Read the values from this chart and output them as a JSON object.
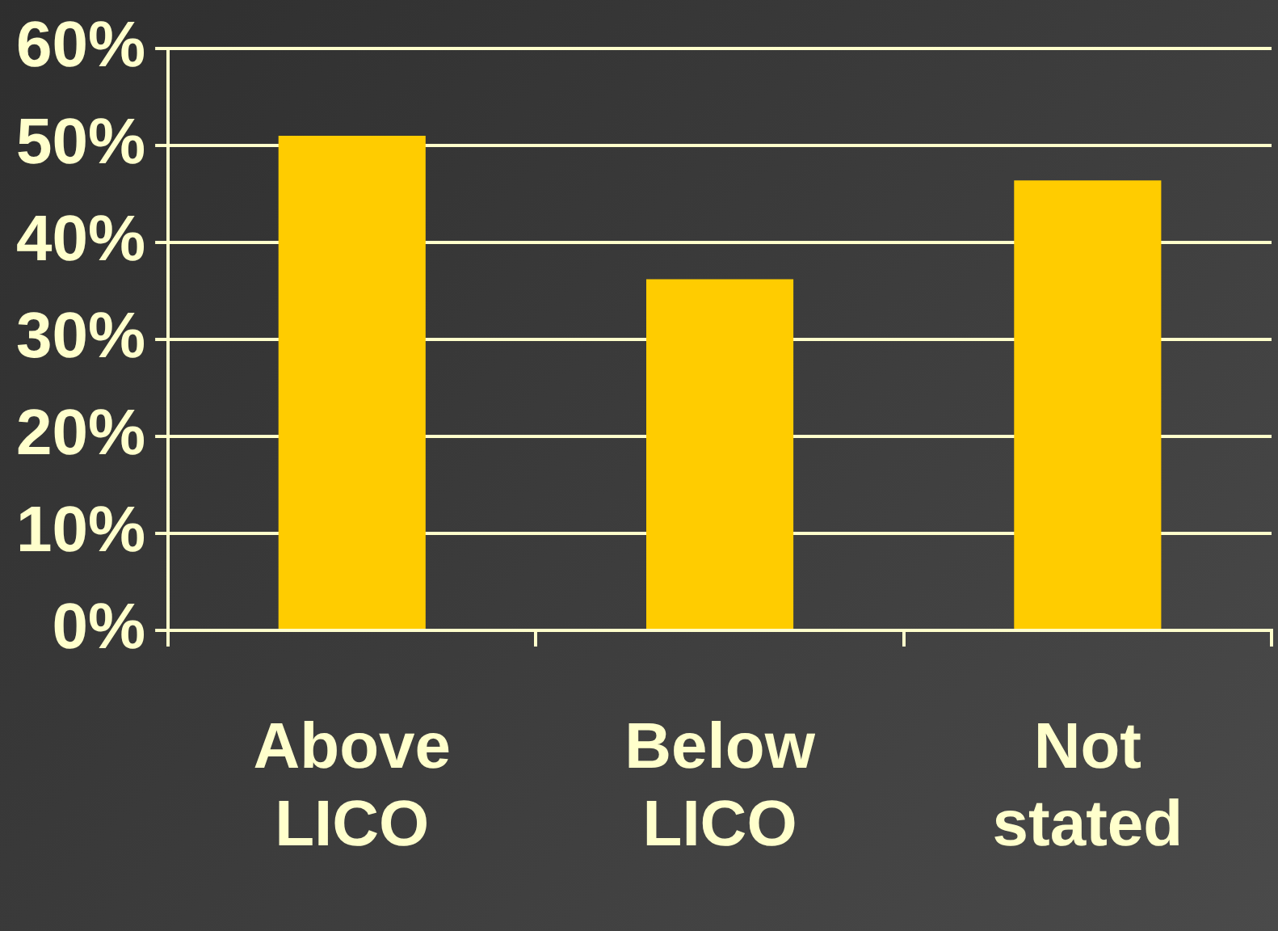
{
  "chart_data": {
    "type": "bar",
    "categories": [
      "Above LICO",
      "Below LICO",
      "Not stated"
    ],
    "values": [
      51,
      36.2,
      46.4
    ],
    "color": "#ffcc00",
    "ylim": [
      0,
      60
    ],
    "yticks": [
      {
        "value": 0,
        "label": "0%"
      },
      {
        "value": 10,
        "label": "10%"
      },
      {
        "value": 20,
        "label": "20%"
      },
      {
        "value": 30,
        "label": "30%"
      },
      {
        "value": 40,
        "label": "40%"
      },
      {
        "value": 50,
        "label": "50%"
      },
      {
        "value": 60,
        "label": "60%"
      }
    ],
    "grid": "y",
    "legend": false
  }
}
